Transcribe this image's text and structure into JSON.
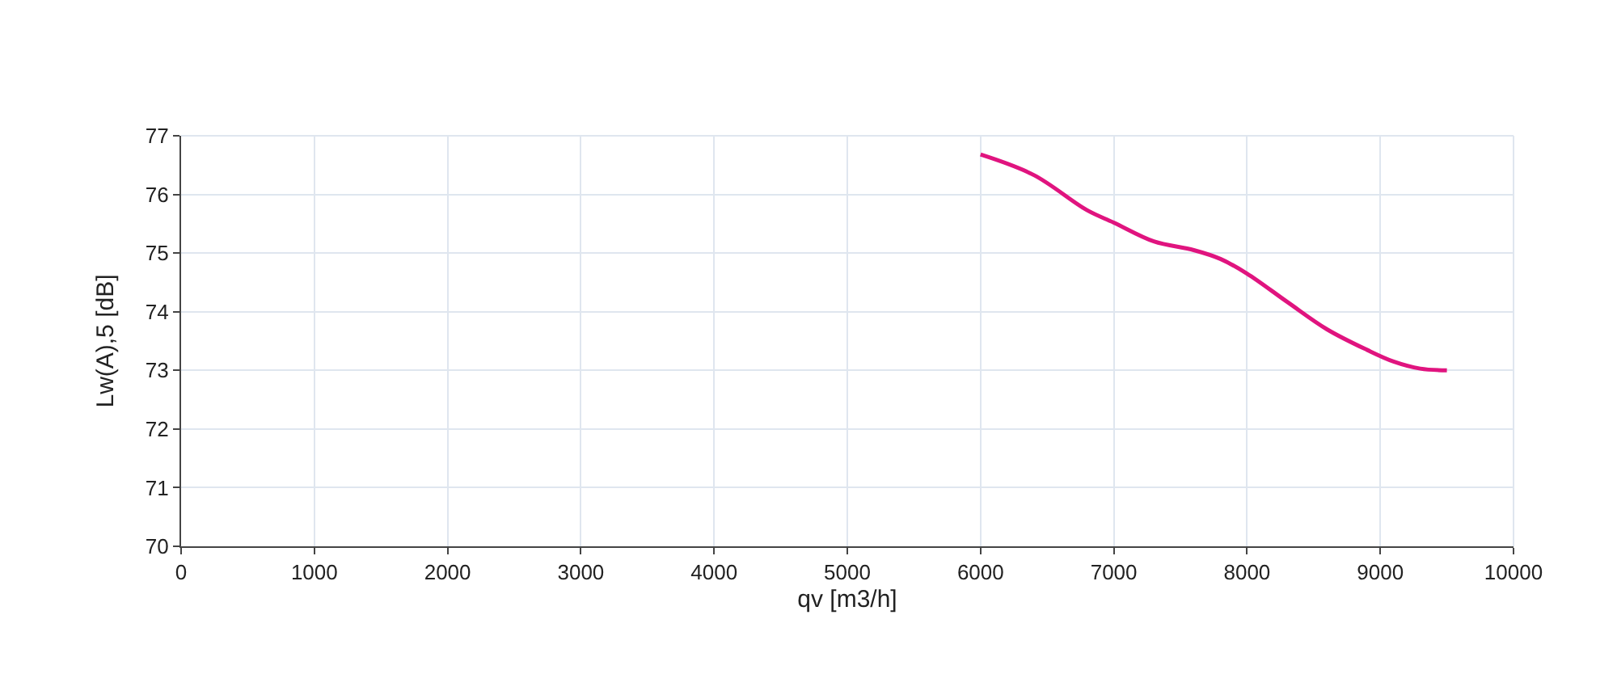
{
  "chart_data": {
    "type": "line",
    "xlabel": "qv [m3/h]",
    "ylabel": "Lw(A),5 [dB]",
    "xlim": [
      0,
      10000
    ],
    "xticks": [
      0,
      1000,
      2000,
      3000,
      4000,
      5000,
      6000,
      7000,
      8000,
      9000,
      10000
    ],
    "ylim": [
      70,
      77
    ],
    "yticks": [
      70,
      71,
      72,
      73,
      74,
      75,
      76,
      77
    ],
    "grid": true,
    "line_style": "solid",
    "series": [
      {
        "color": "#e0147f",
        "x": [
          6000,
          6400,
          6800,
          7000,
          7300,
          7600,
          7800,
          8000,
          8300,
          8600,
          8900,
          9100,
          9300,
          9500
        ],
        "values": [
          76.68,
          76.33,
          75.73,
          75.52,
          75.2,
          75.05,
          74.9,
          74.65,
          74.17,
          73.7,
          73.35,
          73.15,
          73.03,
          73.0
        ]
      }
    ]
  }
}
